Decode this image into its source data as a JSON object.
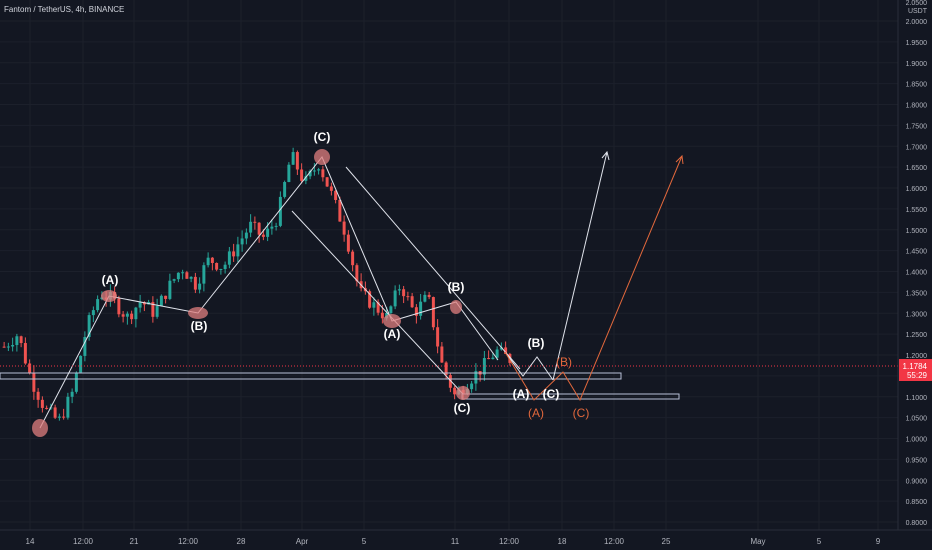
{
  "header": {
    "symbol_title": "Fantom / TetherUS, 4h, BINANCE",
    "currency_top": "2.0500",
    "currency": "USDT"
  },
  "price_axis": {
    "ticks": [
      "2.0000",
      "1.9500",
      "1.9000",
      "1.8500",
      "1.8000",
      "1.7500",
      "1.7000",
      "1.6500",
      "1.6000",
      "1.5500",
      "1.5000",
      "1.4500",
      "1.4000",
      "1.3500",
      "1.3000",
      "1.2500",
      "1.2000",
      "1.1500",
      "1.1000",
      "1.0500",
      "1.0000",
      "0.9500",
      "0.9000",
      "0.8500",
      "0.8000"
    ],
    "current_price": "1.1784",
    "countdown": "55:29",
    "current_price_color": "#f23645"
  },
  "time_axis": {
    "ticks": [
      "14",
      "12:00",
      "21",
      "12:00",
      "28",
      "Apr",
      "5",
      "11",
      "12:00",
      "18",
      "12:00",
      "25",
      "May",
      "5",
      "9"
    ]
  },
  "wave_labels": {
    "a1": "(A)",
    "b1": "(B)",
    "c1": "(C)",
    "a2": "(A)",
    "b2": "(B)",
    "c2": "(C)",
    "a3": "(A)",
    "b3": "(B)",
    "c3": "(C)",
    "a4": "(A)",
    "b4": "(B)",
    "c4": "(C)"
  },
  "colors": {
    "background": "#131722",
    "up_candle": "#26a69a",
    "down_candle": "#ef5350",
    "projection_orange": "#e2683c",
    "annotation_white": "#e0e3eb",
    "marker_fill": "#e07f7f"
  },
  "chart_data": {
    "type": "candlestick",
    "title": "Fantom / TetherUS, 4h, BINANCE",
    "y_range": [
      0.78,
      2.05
    ],
    "path_waypoints_price": [
      1.22,
      1.25,
      1.14,
      1.07,
      1.04,
      1.11,
      1.26,
      1.35,
      1.33,
      1.29,
      1.33,
      1.3,
      1.36,
      1.41,
      1.37,
      1.43,
      1.41,
      1.46,
      1.51,
      1.48,
      1.53,
      1.68,
      1.61,
      1.66,
      1.58,
      1.49,
      1.35,
      1.32,
      1.29,
      1.37,
      1.3,
      1.34,
      1.18,
      1.1,
      1.14,
      1.17,
      1.21,
      1.19
    ],
    "price_levels": {
      "upper_box": [
        1.165,
        1.15
      ],
      "lower_box": [
        1.112,
        1.098
      ]
    },
    "last_price": 1.1784
  }
}
